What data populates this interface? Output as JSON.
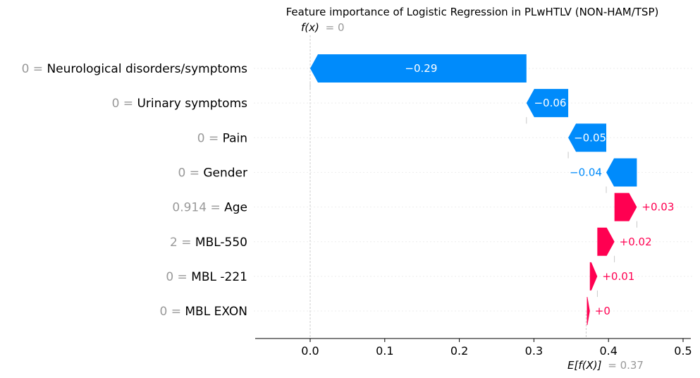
{
  "chart_data": {
    "type": "waterfall",
    "title": "Feature importance of Logistic Regression in PLwHTLV (NON-HAM/TSP)",
    "fx": {
      "label": "f(x)",
      "value_text": "= 0",
      "value": 0.0
    },
    "base": {
      "label": "E[f(X)]",
      "value_text": "= 0.37",
      "value": 0.37
    },
    "xlim": [
      -0.075,
      0.51
    ],
    "xticks": [
      "0.0",
      "0.1",
      "0.2",
      "0.3",
      "0.4",
      "0.5"
    ],
    "grid": false,
    "colors": {
      "negative": "#008bfb",
      "positive": "#ff0051",
      "value_gray": "#999999"
    },
    "features": [
      {
        "value": "0",
        "name": "Neurological disorders/symptoms",
        "contribution": -0.29,
        "label": "−0.29",
        "start": 0.29,
        "end": 0.0
      },
      {
        "value": "0",
        "name": "Urinary symptoms",
        "contribution": -0.06,
        "label": "−0.06",
        "start": 0.346,
        "end": 0.29
      },
      {
        "value": "0",
        "name": "Pain",
        "contribution": -0.05,
        "label": "−0.05",
        "start": 0.397,
        "end": 0.346
      },
      {
        "value": "0",
        "name": "Gender",
        "contribution": -0.04,
        "label": "−0.04",
        "start": 0.438,
        "end": 0.397
      },
      {
        "value": "0.914",
        "name": "Age",
        "contribution": 0.03,
        "label": "+0.03",
        "start": 0.408,
        "end": 0.438
      },
      {
        "value": "2",
        "name": "MBL-550",
        "contribution": 0.02,
        "label": "+0.02",
        "start": 0.385,
        "end": 0.408
      },
      {
        "value": "0",
        "name": "MBL -221",
        "contribution": 0.01,
        "label": "+0.01",
        "start": 0.375,
        "end": 0.385
      },
      {
        "value": "0",
        "name": "MBL EXON",
        "contribution": 0.0,
        "label": "+0",
        "start": 0.371,
        "end": 0.375
      }
    ]
  }
}
